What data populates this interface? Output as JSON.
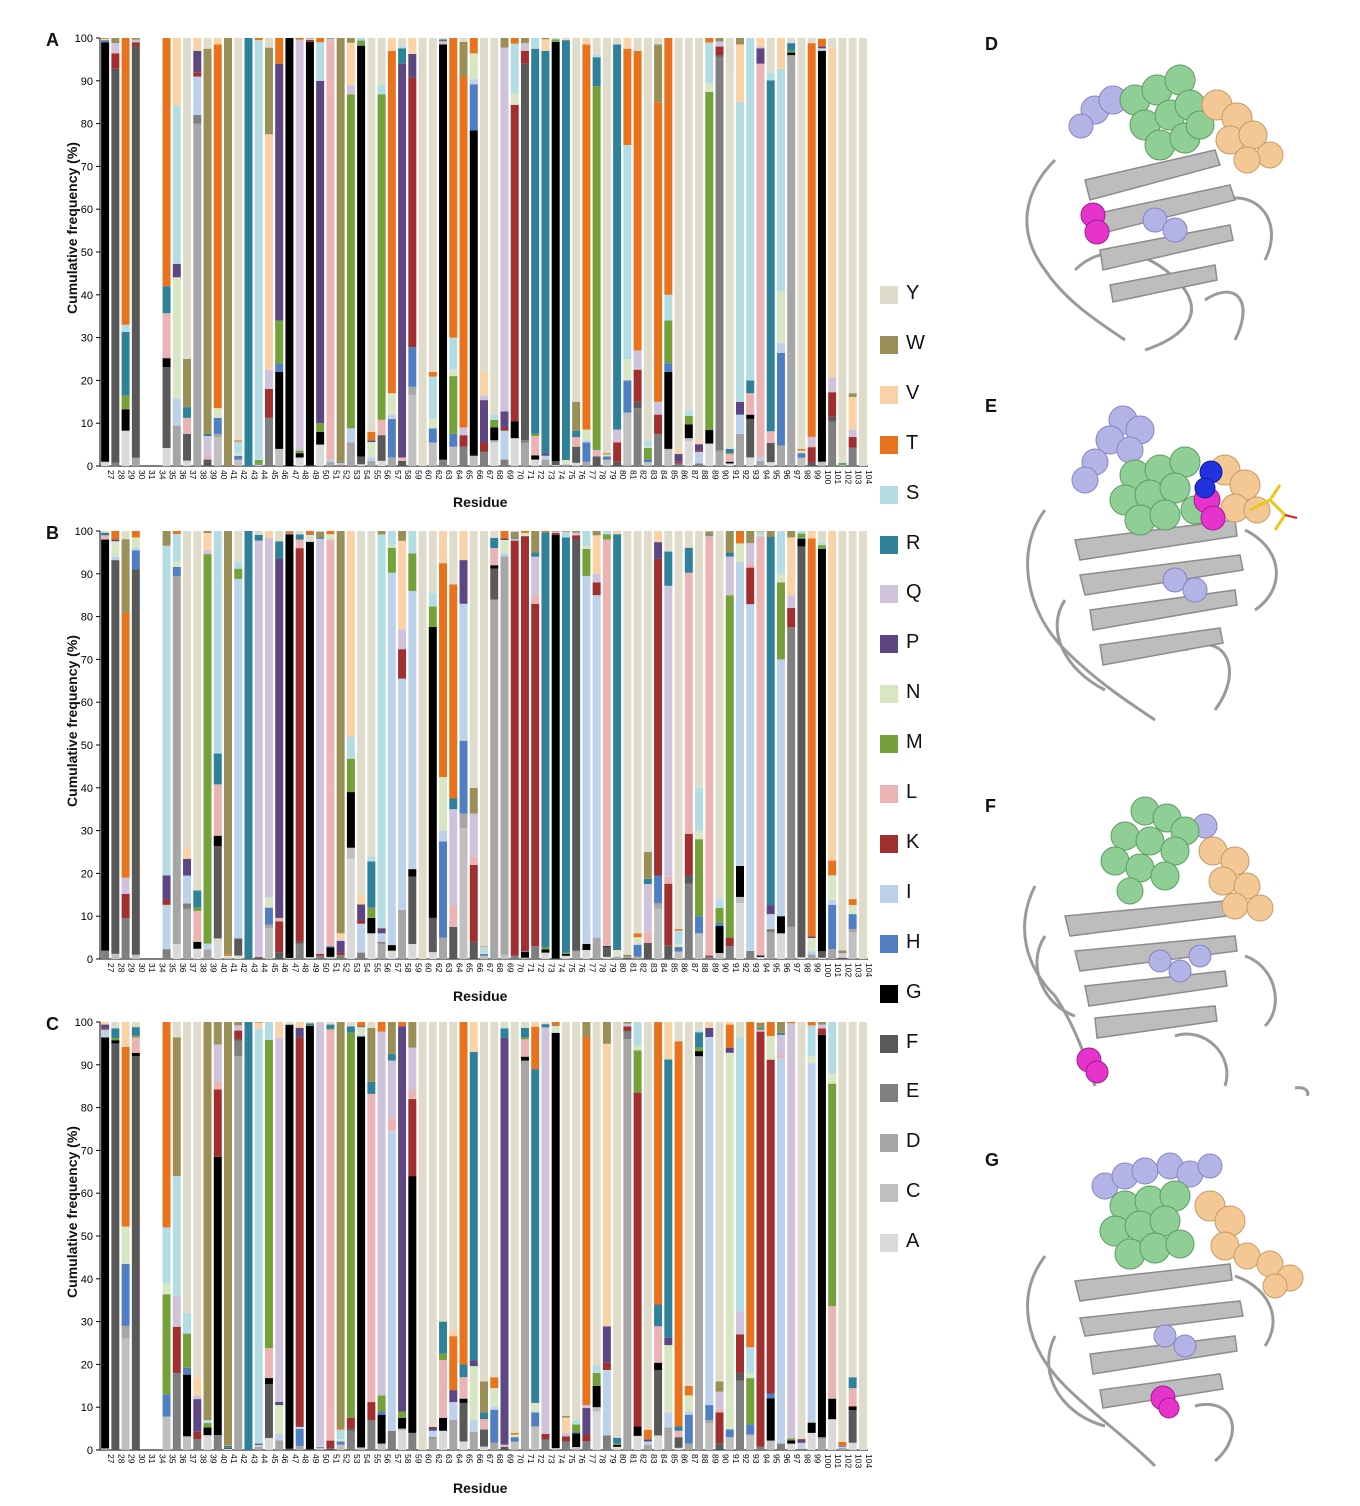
{
  "figure": {
    "panel_letters": [
      "A",
      "B",
      "C",
      "D",
      "E",
      "F",
      "G"
    ]
  },
  "legend": {
    "items": [
      {
        "label": "Y",
        "color": "#e0dccb"
      },
      {
        "label": "W",
        "color": "#9a8f57"
      },
      {
        "label": "V",
        "color": "#f9d2a8"
      },
      {
        "label": "T",
        "color": "#e9731c"
      },
      {
        "label": "S",
        "color": "#b4dde3"
      },
      {
        "label": "R",
        "color": "#2e8198"
      },
      {
        "label": "Q",
        "color": "#cfc3dc"
      },
      {
        "label": "P",
        "color": "#5e4682"
      },
      {
        "label": "N",
        "color": "#d8e6c4"
      },
      {
        "label": "M",
        "color": "#74a13a"
      },
      {
        "label": "L",
        "color": "#eab4b4"
      },
      {
        "label": "K",
        "color": "#a12f2f"
      },
      {
        "label": "I",
        "color": "#bcd2ea"
      },
      {
        "label": "H",
        "color": "#4f7fc2"
      },
      {
        "label": "G",
        "color": "#000000"
      },
      {
        "label": "F",
        "color": "#595959"
      },
      {
        "label": "E",
        "color": "#7f7f7f"
      },
      {
        "label": "D",
        "color": "#a6a6a6"
      },
      {
        "label": "C",
        "color": "#bfbfbf"
      },
      {
        "label": "A",
        "color": "#d9d9d9"
      }
    ]
  },
  "chart_data": [
    {
      "type": "bar",
      "stacked": true,
      "panel": "A",
      "xlabel": "Residue",
      "ylabel": "Cumulative frequency (%)",
      "ylim": [
        0,
        100
      ],
      "yticks": [
        0,
        10,
        20,
        30,
        40,
        50,
        60,
        70,
        80,
        90,
        100
      ],
      "categories": [
        "27",
        "28",
        "29",
        "30",
        "31",
        "34",
        "35",
        "36",
        "37",
        "38",
        "39",
        "40",
        "41",
        "42",
        "43",
        "44",
        "45",
        "46",
        "47",
        "48",
        "49",
        "50",
        "51",
        "52",
        "53",
        "54",
        "55",
        "56",
        "57",
        "58",
        "59",
        "60",
        "62",
        "63",
        "64",
        "65",
        "66",
        "67",
        "68",
        "69",
        "70",
        "71",
        "72",
        "73",
        "74",
        "75",
        "76",
        "77",
        "78",
        "79",
        "80",
        "81",
        "82",
        "83",
        "84",
        "85",
        "86",
        "87",
        "88",
        "89",
        "90",
        "91",
        "92",
        "93",
        "94",
        "95",
        "96",
        "97",
        "98",
        "99",
        "100",
        "101",
        "102",
        "103",
        "104"
      ],
      "dominant": [
        "G",
        "F",
        "T",
        "F",
        "",
        "",
        "T",
        "S",
        "Y",
        "D",
        "W",
        "T",
        "W",
        "Y",
        "R",
        "S",
        "V",
        "P",
        "G",
        "Q",
        "G",
        "P",
        "L",
        "W",
        "M",
        "G",
        "Y",
        "M",
        "T",
        "P",
        "K",
        "Y",
        "Y",
        "G",
        "T",
        "T",
        "G",
        "Y",
        "Y",
        "Q",
        "K",
        "F",
        "R",
        "R",
        "G",
        "R",
        "Y",
        "T",
        "M",
        "Y",
        "R",
        "S",
        "T",
        "Y",
        "T",
        "T",
        "Y",
        "Y",
        "Y",
        "M",
        "E",
        "Y",
        "S",
        "S",
        "L",
        "R",
        "S",
        "D",
        "Y",
        "T",
        "G",
        "V",
        "Y",
        "Y",
        "Y"
      ],
      "dominant_pct": [
        98,
        92,
        67,
        96,
        0,
        0,
        58,
        37,
        75,
        80,
        90,
        85,
        100,
        94,
        100,
        98,
        55,
        60,
        100,
        96,
        99,
        80,
        98,
        99,
        78,
        96,
        92,
        76,
        80,
        92,
        63,
        100,
        78,
        97,
        70,
        82,
        76,
        78,
        88,
        85,
        74,
        88,
        90,
        94,
        98,
        98,
        85,
        90,
        85,
        97,
        90,
        50,
        70,
        94,
        70,
        60,
        96,
        87,
        94,
        79,
        92,
        96,
        70,
        80,
        92,
        82,
        52,
        96,
        96,
        92,
        96,
        77,
        99,
        83,
        100
      ]
    },
    {
      "type": "bar",
      "stacked": true,
      "panel": "B",
      "xlabel": "Residue",
      "ylabel": "Cumulative frequency (%)",
      "ylim": [
        0,
        100
      ],
      "yticks": [
        0,
        10,
        20,
        30,
        40,
        50,
        60,
        70,
        80,
        90,
        100
      ],
      "categories": [
        "27",
        "28",
        "29",
        "30",
        "31",
        "34",
        "35",
        "36",
        "37",
        "38",
        "39",
        "40",
        "41",
        "42",
        "43",
        "44",
        "45",
        "46",
        "47",
        "48",
        "49",
        "50",
        "51",
        "52",
        "53",
        "54",
        "55",
        "56",
        "57",
        "58",
        "59",
        "60",
        "62",
        "63",
        "64",
        "65",
        "66",
        "67",
        "68",
        "69",
        "70",
        "71",
        "72",
        "73",
        "74",
        "75",
        "76",
        "77",
        "78",
        "79",
        "80",
        "81",
        "82",
        "83",
        "84",
        "85",
        "86",
        "87",
        "88",
        "89",
        "90",
        "91",
        "92",
        "93",
        "94",
        "95",
        "96",
        "97",
        "98",
        "99",
        "100",
        "101",
        "102",
        "103",
        "104"
      ],
      "dominant": [
        "G",
        "F",
        "T",
        "F",
        "",
        "",
        "S",
        "D",
        "Y",
        "Y",
        "M",
        "S",
        "W",
        "I",
        "R",
        "Q",
        "Q",
        "P",
        "G",
        "K",
        "G",
        "Q",
        "L",
        "W",
        "V",
        "Y",
        "Y",
        "S",
        "I",
        "I",
        "I",
        "Y",
        "G",
        "T",
        "T",
        "I",
        "Y",
        "Y",
        "D",
        "D",
        "K",
        "K",
        "K",
        "R",
        "G",
        "R",
        "F",
        "I",
        "I",
        "L",
        "R",
        "Y",
        "Y",
        "Y",
        "K",
        "Q",
        "Y",
        "L",
        "Y",
        "L",
        "Y",
        "M",
        "I",
        "I",
        "L",
        "R",
        "I",
        "E",
        "F",
        "T",
        "G",
        "V",
        "Y",
        "Y",
        "Y"
      ],
      "dominant_pct": [
        96,
        92,
        62,
        90,
        0,
        0,
        77,
        86,
        74,
        84,
        91,
        52,
        99,
        84,
        100,
        97,
        84,
        84,
        99,
        92,
        97,
        97,
        95,
        94,
        48,
        85,
        76,
        92,
        87,
        54,
        65,
        100,
        68,
        50,
        50,
        32,
        60,
        97,
        84,
        93,
        97,
        97,
        80,
        97,
        99,
        97,
        96,
        86,
        80,
        95,
        97,
        99,
        94,
        75,
        74,
        68,
        93,
        61,
        60,
        98,
        86,
        80,
        71,
        81,
        98,
        86,
        60,
        70,
        96,
        93,
        94,
        77,
        98,
        86,
        100
      ]
    },
    {
      "type": "bar",
      "stacked": true,
      "panel": "C",
      "xlabel": "Residue",
      "ylabel": "Cumulative frequency (%)",
      "ylim": [
        0,
        100
      ],
      "yticks": [
        0,
        10,
        20,
        30,
        40,
        50,
        60,
        70,
        80,
        90,
        100
      ],
      "categories": [
        "27",
        "28",
        "29",
        "30",
        "31",
        "34",
        "35",
        "36",
        "37",
        "38",
        "39",
        "40",
        "41",
        "42",
        "43",
        "44",
        "45",
        "46",
        "47",
        "48",
        "49",
        "50",
        "51",
        "52",
        "53",
        "54",
        "55",
        "56",
        "57",
        "58",
        "59",
        "60",
        "62",
        "63",
        "64",
        "65",
        "66",
        "67",
        "68",
        "69",
        "70",
        "71",
        "72",
        "73",
        "74",
        "75",
        "76",
        "77",
        "78",
        "79",
        "80",
        "81",
        "82",
        "83",
        "84",
        "85",
        "86",
        "87",
        "88",
        "89",
        "90",
        "91",
        "92",
        "93",
        "94",
        "95",
        "96",
        "97",
        "98",
        "99",
        "100",
        "101",
        "102",
        "103",
        "104"
      ],
      "dominant": [
        "G",
        "F",
        "T",
        "F",
        "",
        "",
        "T",
        "S",
        "Y",
        "Y",
        "W",
        "G",
        "W",
        "D",
        "R",
        "S",
        "M",
        "Q",
        "G",
        "K",
        "G",
        "Q",
        "L",
        "W",
        "M",
        "G",
        "L",
        "Q",
        "I",
        "P",
        "G",
        "Y",
        "Y",
        "Y",
        "Y",
        "T",
        "R",
        "Y",
        "Y",
        "P",
        "Y",
        "D",
        "R",
        "Q",
        "G",
        "Y",
        "Y",
        "T",
        "Y",
        "V",
        "Y",
        "D",
        "K",
        "Y",
        "T",
        "R",
        "T",
        "Y",
        "D",
        "I",
        "Y",
        "N",
        "S",
        "T",
        "K",
        "K",
        "I",
        "Q",
        "Y",
        "I",
        "G",
        "M",
        "Y",
        "Y",
        "Y"
      ],
      "dominant_pct": [
        96,
        95,
        42,
        92,
        0,
        0,
        48,
        28,
        68,
        83,
        93,
        65,
        99,
        92,
        100,
        97,
        72,
        85,
        99,
        91,
        99,
        99,
        96,
        95,
        90,
        96,
        72,
        85,
        70,
        90,
        60,
        100,
        94,
        70,
        72,
        80,
        72,
        84,
        83,
        95,
        96,
        91,
        78,
        95,
        97,
        92,
        93,
        86,
        80,
        66,
        97,
        96,
        78,
        95,
        66,
        65,
        90,
        85,
        92,
        86,
        84,
        88,
        64,
        76,
        97,
        78,
        90,
        97,
        97,
        84,
        94,
        52,
        98,
        83,
        100
      ]
    }
  ]
}
